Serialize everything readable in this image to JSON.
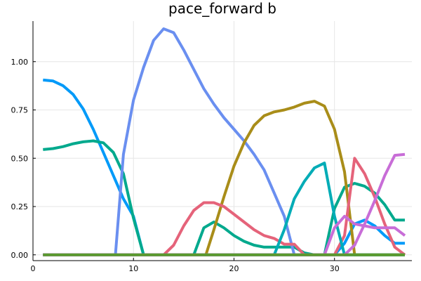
{
  "chart_data": {
    "type": "line",
    "title": "pace_forward b",
    "xlabel": "",
    "ylabel": "",
    "xlim": [
      0,
      37.7
    ],
    "ylim": [
      -0.03,
      1.21
    ],
    "xticks": [
      0,
      10,
      20,
      30
    ],
    "yticks": [
      0.0,
      0.25,
      0.5,
      0.75,
      1.0
    ],
    "xtick_labels": [
      "0",
      "10",
      "20",
      "30"
    ],
    "ytick_labels": [
      "0.00",
      "0.25",
      "0.50",
      "0.75",
      "1.00"
    ],
    "grid": true,
    "legend": "none",
    "series": [
      {
        "color": "#009af9",
        "x": [
          1,
          2,
          3,
          4,
          5,
          6,
          7,
          8,
          9,
          10,
          11,
          12,
          13,
          14,
          15,
          16,
          17,
          18,
          19,
          20,
          21,
          22,
          23,
          24,
          25,
          26,
          27,
          28,
          29,
          30,
          31,
          32,
          33,
          34,
          35,
          36,
          37
        ],
        "y": [
          0.905,
          0.9,
          0.875,
          0.83,
          0.755,
          0.65,
          0.53,
          0.41,
          0.29,
          0.2,
          0,
          0,
          0,
          0,
          0,
          0,
          0,
          0,
          0,
          0,
          0,
          0,
          0,
          0,
          0,
          0,
          0,
          0,
          0,
          0,
          0.06,
          0.16,
          0.18,
          0.15,
          0.1,
          0.06,
          0.06
        ]
      },
      {
        "color": "#00a98d",
        "x": [
          1,
          2,
          3,
          4,
          5,
          6,
          7,
          8,
          9,
          10,
          11,
          12,
          13,
          14,
          15,
          16,
          17,
          18,
          19,
          20,
          21,
          22,
          23,
          24,
          25,
          26,
          27,
          28,
          29,
          30,
          31,
          32,
          33,
          34,
          35,
          36,
          37
        ],
        "y": [
          0.545,
          0.55,
          0.56,
          0.575,
          0.585,
          0.59,
          0.58,
          0.53,
          0.42,
          0.19,
          0,
          0,
          0,
          0,
          0,
          0,
          0.14,
          0.17,
          0.14,
          0.1,
          0.07,
          0.05,
          0.04,
          0.04,
          0.04,
          0.04,
          0.01,
          0,
          0,
          0.24,
          0.35,
          0.37,
          0.355,
          0.32,
          0.26,
          0.18,
          0.18
        ]
      },
      {
        "color": "#6a8ff0",
        "x": [
          1,
          2,
          3,
          4,
          5,
          6,
          7,
          8,
          8.2,
          9,
          10,
          11,
          12,
          13,
          14,
          15,
          16,
          17,
          18,
          19,
          20,
          21,
          22,
          23,
          24,
          25,
          26,
          27,
          28,
          29,
          30,
          31,
          32,
          33,
          34,
          35,
          36,
          37
        ],
        "y": [
          0,
          0,
          0,
          0,
          0,
          0,
          0,
          0,
          0,
          0.52,
          0.8,
          0.97,
          1.11,
          1.17,
          1.15,
          1.06,
          0.96,
          0.86,
          0.78,
          0.71,
          0.65,
          0.59,
          0.52,
          0.44,
          0.32,
          0.2,
          0,
          0,
          0,
          0,
          0,
          0,
          0,
          0,
          0,
          0,
          0,
          0
        ]
      },
      {
        "color": "#a98d19",
        "x": [
          1,
          2,
          3,
          4,
          5,
          6,
          7,
          8,
          9,
          10,
          11,
          12,
          13,
          14,
          15,
          16,
          17,
          17.2,
          18,
          19,
          20,
          21,
          22,
          23,
          24,
          25,
          26,
          27,
          28,
          29,
          30,
          31,
          32,
          33,
          34,
          35,
          36,
          37
        ],
        "y": [
          0,
          0,
          0,
          0,
          0,
          0,
          0,
          0,
          0,
          0,
          0,
          0,
          0,
          0,
          0,
          0,
          0,
          0,
          0.13,
          0.3,
          0.46,
          0.58,
          0.67,
          0.72,
          0.74,
          0.75,
          0.765,
          0.785,
          0.795,
          0.77,
          0.65,
          0.43,
          0,
          0,
          0,
          0,
          0,
          0
        ]
      },
      {
        "color": "#e5637a",
        "x": [
          1,
          2,
          3,
          4,
          5,
          6,
          7,
          8,
          9,
          10,
          11,
          12,
          13,
          14,
          15,
          16,
          17,
          18,
          19,
          20,
          21,
          22,
          23,
          24,
          25,
          26,
          27,
          28,
          29,
          30,
          31,
          32,
          33,
          34,
          35,
          36,
          37
        ],
        "y": [
          0,
          0,
          0,
          0,
          0,
          0,
          0,
          0,
          0,
          0,
          0,
          0,
          0,
          0.05,
          0.15,
          0.23,
          0.27,
          0.27,
          0.25,
          0.21,
          0.17,
          0.13,
          0.1,
          0.085,
          0.055,
          0.055,
          0,
          0,
          0,
          0,
          0.1,
          0.5,
          0.42,
          0.3,
          0.16,
          0.04,
          0
        ]
      },
      {
        "color": "#00acb6",
        "x": [
          1,
          2,
          3,
          4,
          5,
          6,
          7,
          8,
          9,
          10,
          11,
          12,
          13,
          14,
          15,
          16,
          17,
          18,
          19,
          20,
          21,
          22,
          23,
          24,
          25,
          26,
          27,
          28,
          29,
          30,
          31,
          32,
          33,
          34,
          35,
          36,
          37
        ],
        "y": [
          0,
          0,
          0,
          0,
          0,
          0,
          0,
          0,
          0,
          0,
          0,
          0,
          0,
          0,
          0,
          0,
          0,
          0,
          0,
          0,
          0,
          0,
          0,
          0,
          0.13,
          0.29,
          0.38,
          0.45,
          0.475,
          0.2,
          0,
          0,
          0,
          0,
          0,
          0,
          0
        ]
      },
      {
        "color": "#c86dd7",
        "x": [
          1,
          2,
          3,
          4,
          5,
          6,
          7,
          8,
          9,
          10,
          11,
          12,
          13,
          14,
          15,
          16,
          17,
          18,
          19,
          20,
          21,
          22,
          23,
          24,
          25,
          26,
          27,
          28,
          29,
          30,
          31,
          32,
          33,
          34,
          35,
          36,
          37
        ],
        "y": [
          0,
          0,
          0,
          0,
          0,
          0,
          0,
          0,
          0,
          0,
          0,
          0,
          0,
          0,
          0,
          0,
          0,
          0,
          0,
          0,
          0,
          0,
          0,
          0,
          0,
          0,
          0,
          0,
          0,
          0.14,
          0.2,
          0.16,
          0.15,
          0.14,
          0.14,
          0.14,
          0.1
        ]
      },
      {
        "color": "#c86dd7",
        "x": [
          1,
          2,
          3,
          4,
          5,
          6,
          7,
          8,
          9,
          10,
          11,
          12,
          13,
          14,
          15,
          16,
          17,
          18,
          19,
          20,
          21,
          22,
          23,
          24,
          25,
          26,
          27,
          28,
          29,
          30,
          31,
          32,
          33,
          34,
          35,
          36,
          37
        ],
        "y": [
          0,
          0,
          0,
          0,
          0,
          0,
          0,
          0,
          0,
          0,
          0,
          0,
          0,
          0,
          0,
          0,
          0,
          0,
          0,
          0,
          0,
          0,
          0,
          0,
          0,
          0,
          0,
          0,
          0,
          0,
          0,
          0.05,
          0.16,
          0.28,
          0.41,
          0.515,
          0.52
        ]
      },
      {
        "color": "#5a9a2e",
        "x": [
          1,
          2,
          3,
          4,
          5,
          6,
          7,
          8,
          9,
          10,
          11,
          12,
          13,
          14,
          15,
          16,
          17,
          18,
          19,
          20,
          21,
          22,
          23,
          24,
          25,
          26,
          27,
          28,
          29,
          30,
          31,
          32,
          33,
          34,
          35,
          36,
          37
        ],
        "y": [
          0,
          0,
          0,
          0,
          0,
          0,
          0,
          0,
          0,
          0,
          0,
          0,
          0,
          0,
          0,
          0,
          0,
          0,
          0,
          0,
          0,
          0,
          0,
          0,
          0,
          0,
          0,
          0,
          0,
          0,
          0,
          0,
          0,
          0,
          0,
          0,
          0
        ]
      }
    ]
  }
}
